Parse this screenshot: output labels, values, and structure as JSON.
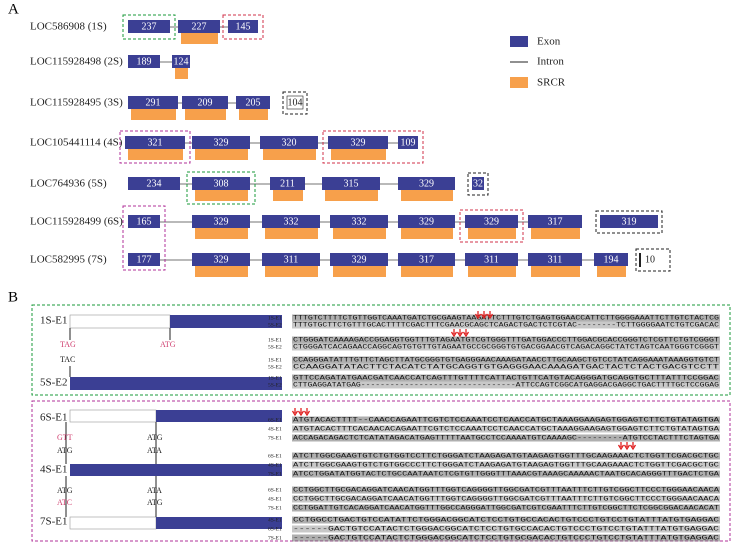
{
  "panelA": {
    "letter": "A",
    "legend": [
      "Exon",
      "Intron",
      "SRCR"
    ],
    "genes": [
      {
        "label": "LOC586908 (1S)",
        "exons": [
          237,
          227,
          145
        ]
      },
      {
        "label": "LOC115928498 (2S)",
        "exons": [
          189,
          124
        ]
      },
      {
        "label": "LOC115928495 (3S)",
        "exons": [
          291,
          209,
          205,
          104
        ]
      },
      {
        "label": "LOC105441114 (4S)",
        "exons": [
          321,
          329,
          320,
          329,
          109
        ]
      },
      {
        "label": "LOC764936 (5S)",
        "exons": [
          234,
          308,
          211,
          315,
          329,
          32
        ]
      },
      {
        "label": "LOC115928499 (6S)",
        "exons": [
          165,
          329,
          332,
          332,
          329,
          329,
          317,
          319
        ]
      },
      {
        "label": "LOC582995 (7S)",
        "exons": [
          177,
          329,
          311,
          329,
          317,
          311,
          311,
          194,
          10
        ]
      }
    ]
  },
  "panelB": {
    "letter": "B",
    "group1": {
      "labels": [
        "1S-E1",
        "5S-E2"
      ],
      "codons": [
        "TAG",
        "ATG",
        "TAC"
      ],
      "blocks": [
        {
          "names": [
            "1S-E1",
            "5S-E2"
          ],
          "seqs": [
            "TTTGTCTTTTCTGTTGGTCAAATGATCTGCGAAGTAAGATTCTTTGTCTGAGTGGAACCATTCTTGGGGAAATTCTTGTCTACTCG",
            "TTTGTGCTTCTGTTTGCACTTTTCGACTTTCGAACGCAGCTCAGACTGACTCTCGTAC--------TCTTGGGGAATCTGTCGACAC"
          ]
        },
        {
          "names": [
            "1S-E1",
            "5S-E2"
          ],
          "seqs": [
            "CTGGGATCAAAAGACCGGAGGTGGTTTGTAGAATGTCGTGGGTTTGATGGACCCTTGGACGCACCGGGTCTCGTTCTGTCGGGT",
            "CTGGGATCACAGAACCAGGCAGTGTGTTGTAGAATGCCGCGGGTGTGACGGAACGTCAGACAGGCTATCTAGTCAATGGGTCGGGT"
          ]
        },
        {
          "names": [
            "1S-E1",
            "5S-E2"
          ],
          "seqs": [
            "CCAGGGATATTTGTTCTAGCTTATGCGGGTGTGAGGGAACAAAGATAACCTTGCAAGCTGTCCTATCAGGAAATAAAGGTGTCT",
            "CCAAGGATATACTTCTACATCTATGCAGGTGTGAGGGAACAAAGATGACTACTCTACTGACGTCCTT"
          ]
        },
        {
          "names": [
            "1S-E1",
            "5S-E2"
          ],
          "seqs": [
            "GTTCCAGATATGAACGATCAACCATCAGTTTGTTTTCATTACTGTTCATGTACAGGGATGCAGGTGCTTTATTTCCGGAC",
            "CTTGAGGATATGAG--------------------------------ATTCCAGTCGGCATGAGGACGAGGCTGACTTTTGCTCCGGAG"
          ]
        }
      ]
    },
    "group2": {
      "labels": [
        "6S-E1",
        "4S-E1",
        "7S-E1"
      ],
      "codons": [
        "GTT",
        "ATG",
        "ATG",
        "ATA",
        "ATG",
        "ATC",
        "ATA",
        "ATG"
      ],
      "blocks": [
        {
          "names": [
            "6S-E1",
            "4S-E1",
            "7S-E1"
          ],
          "seqs": [
            "ATGTACACTTTT--CAACCAGAATTCGTCTCCAAATCCTCAACCATGCTAAAGGAAGAGTGGAGTCTTCTGTATAGTGA",
            "ATGTACACTTTCACAACACAGAATTCGTCTCCAAATCCTCAACCATGCTAAAGGAAGAGTGGAGTCTTCTGTATAGTGA",
            "ACCAGACAGACTCTCATATAGACATGAGTTTTTAATGCCTCCAAAATGTCAAAAGC---------ATGTCCTACTTTCTAGTGA"
          ]
        },
        {
          "names": [
            "6S-E1",
            "4S-E1",
            "7S-E1"
          ],
          "seqs": [
            "ATCTTGGCGAAGTGTCTGTGGTCCTTCTGGGATCTAAGAGATGTAAGAGTGGTTTGCAAGAAACTCTGGTTCGACGCTGC",
            "ATCTTGGCGAAGTGTCTGTGGCCCTTCTGGGATCTAAGAGATGTAAGAGTGGTTTGCAAGAAACTCTGGTTCGACGCTGC",
            "ATCCTGGATATGGTACTCTGCCAATAATCTCGTGTTGGGTTTAAACGTAAAGCAAAAACTAATGCACAGGGTTTGACTCTGA"
          ]
        },
        {
          "names": [
            "6S-E1",
            "4S-E1",
            "7S-E1"
          ],
          "seqs": [
            "CCTGGCTTGCGACAGGATCAACATGGTTTGGTCAGGGGTTGGCGATCGTTTAATTTCTTGTCGGCTTCCCTGGGAACAACA",
            "CCTGGCTTGCGACAGGATCAACATGGTTTGGTCAGGGGTTGGCGATCGTTTAATTTCTTGTCGGCTTCCCTGGGAACAACA",
            "CCTGGATTGTCACAGGATCAACATGGTTTGGCCAGGGATTGGCGATCGTCGAATTTCTTGTCGGCTTCTCGGCGGACAACACAT"
          ]
        },
        {
          "names": [
            "4S-E1",
            "6S-E1",
            "7S-E1"
          ],
          "seqs": [
            "CCTGGCCTGACTGTCCATATTCTGGGACGGCATCTCCTGTGCCACACTGTCCCTGTCCTGTATTTATGTGAGGAC",
            "------GACTGTCCATACTCTGGGACGGCATCTCCTGTGCCACACTGTCCCTGTCCTGTATTTATGTGAGGAC",
            "------GACTGTCCATACTCTGGGACGGCATCTCCTGTGCGACACTGTCCCTGTCCTGTATTTATGTGAGGAC"
          ]
        }
      ]
    }
  }
}
